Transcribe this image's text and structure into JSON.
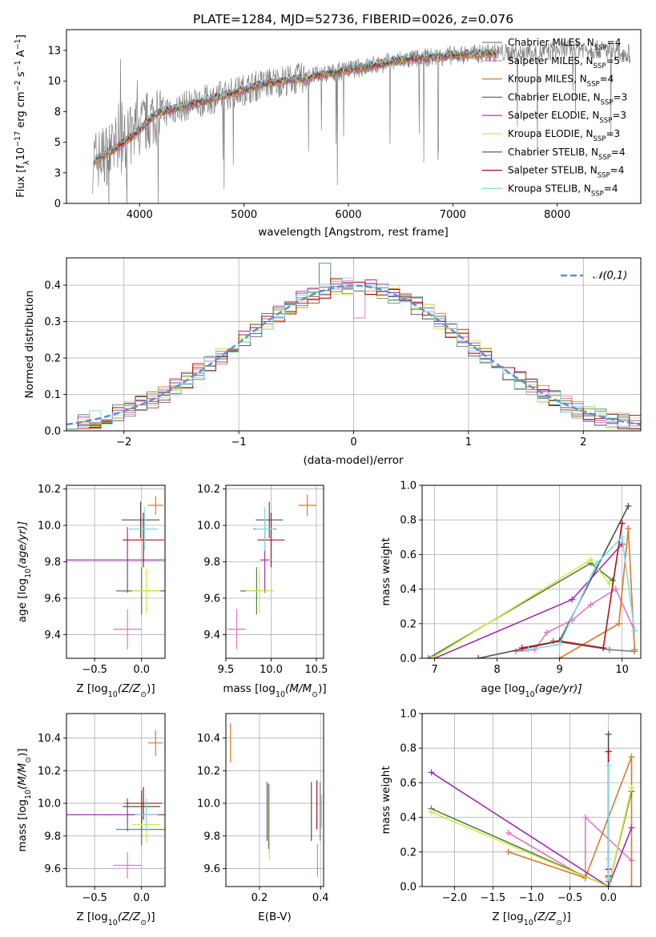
{
  "colors": {
    "Chabrier MILES": "#7f7f7f",
    "Salpeter MILES": "#e377c2",
    "Kroupa MILES": "#d97a2b",
    "Chabrier ELODIE": "#4f7f4f",
    "Salpeter ELODIE": "#9b30b0",
    "Kroupa ELODIE": "#d4e83c",
    "Chabrier STELIB": "#505050",
    "Salpeter STELIB": "#b01010",
    "Kroupa STELIB": "#80d8e8",
    "normal": "#5f8fd6",
    "grid": "#b0b0b0",
    "data": "#808080"
  },
  "chart_data": [
    {
      "id": "spectrum",
      "type": "line",
      "title": "PLATE=1284, MJD=52736, FIBERID=0026, z=0.076",
      "xlabel": "wavelength [Angstrom, rest frame]",
      "ylabel_parts": [
        "Flux [f",
        "λ",
        "10",
        "−17",
        " erg cm",
        "−2",
        " s",
        "−1",
        " A",
        "−1",
        "]"
      ],
      "xlim": [
        3300,
        8800
      ],
      "ylim": [
        0,
        14.2
      ],
      "xticks": [
        4000,
        5000,
        6000,
        7000,
        8000
      ],
      "yticks": [
        0.0,
        2.5,
        5.0,
        7.5,
        10.0,
        12.5
      ],
      "grid": false,
      "legend_position": "top-right",
      "continuum": [
        [
          3550,
          3.4
        ],
        [
          3750,
          4.4
        ],
        [
          3950,
          5.6
        ],
        [
          4150,
          7.3
        ],
        [
          4450,
          8.0
        ],
        [
          4800,
          8.8
        ],
        [
          5200,
          9.8
        ],
        [
          5600,
          10.3
        ],
        [
          6000,
          10.9
        ],
        [
          6500,
          11.7
        ],
        [
          7000,
          12.1
        ],
        [
          7400,
          12.3
        ],
        [
          7800,
          12.3
        ],
        [
          8200,
          12.7
        ],
        [
          8500,
          12.5
        ],
        [
          8700,
          12.2
        ]
      ],
      "models_end": 7420,
      "series": [
        {
          "name": "Chabrier MILES",
          "nssp": "4"
        },
        {
          "name": "Salpeter MILES",
          "nssp": "5"
        },
        {
          "name": "Kroupa MILES",
          "nssp": "4"
        },
        {
          "name": "Chabrier ELODIE",
          "nssp": "3"
        },
        {
          "name": "Salpeter ELODIE",
          "nssp": "3"
        },
        {
          "name": "Kroupa ELODIE",
          "nssp": "3"
        },
        {
          "name": "Chabrier STELIB",
          "nssp": "4"
        },
        {
          "name": "Salpeter STELIB",
          "nssp": "4"
        },
        {
          "name": "Kroupa STELIB",
          "nssp": "4"
        }
      ]
    },
    {
      "id": "residuals",
      "type": "histogram",
      "xlabel": "(data-model)/error",
      "ylabel": "Normed distribution",
      "xlim": [
        -2.5,
        2.5
      ],
      "ylim": [
        0,
        0.475
      ],
      "xticks": [
        -2,
        -1,
        0,
        1,
        2
      ],
      "yticks": [
        0.0,
        0.1,
        0.2,
        0.3,
        0.4
      ],
      "grid": true,
      "legend_position": "top-right",
      "legend": "𝒩(0,1)",
      "bin_width": 0.1,
      "bins_start": -2.5,
      "featured_values": {
        "Chabrier ELODIE": {
          "index": 22,
          "value": 0.46
        },
        "Salpeter MILES": {
          "index": 25,
          "value": 0.31
        }
      }
    },
    {
      "id": "age_vs_Z",
      "type": "errorbar",
      "xlabel_parts": [
        "Z [log",
        "10",
        "(Z/Z",
        "⊙",
        ")]"
      ],
      "ylabel_parts": [
        "age  [log",
        "10",
        "(age/yr)]"
      ],
      "xlim": [
        -0.8,
        0.25
      ],
      "ylim": [
        9.27,
        10.22
      ],
      "xticks": [
        -0.5,
        0.0
      ],
      "yticks": [
        9.4,
        9.6,
        9.8,
        10.0,
        10.2
      ],
      "grid": true,
      "points": [
        {
          "s": "Chabrier MILES",
          "x": 0.02,
          "y": 9.98,
          "xerr": 0.15,
          "yerr": 0.05
        },
        {
          "s": "Salpeter MILES",
          "x": -0.15,
          "y": 9.43,
          "xerr": 0.15,
          "yerr": 0.11
        },
        {
          "s": "Kroupa MILES",
          "x": 0.15,
          "y": 10.11,
          "xerr": 0.08,
          "yerr": 0.05
        },
        {
          "s": "Chabrier ELODIE",
          "x": 0.0,
          "y": 9.64,
          "xerr": 0.27,
          "yerr": 0.13
        },
        {
          "s": "Salpeter ELODIE",
          "x": -0.15,
          "y": 9.81,
          "xerr": 0.65,
          "yerr": 0.18
        },
        {
          "s": "Kroupa ELODIE",
          "x": 0.05,
          "y": 9.64,
          "xerr": 0.15,
          "yerr": 0.12
        },
        {
          "s": "Chabrier STELIB",
          "x": -0.01,
          "y": 10.03,
          "xerr": 0.2,
          "yerr": 0.1
        },
        {
          "s": "Salpeter STELIB",
          "x": 0.02,
          "y": 9.92,
          "xerr": 0.22,
          "yerr": 0.15
        },
        {
          "s": "Kroupa STELIB",
          "x": 0.03,
          "y": 9.98,
          "xerr": 0.15,
          "yerr": 0.12
        }
      ]
    },
    {
      "id": "age_vs_mass",
      "type": "errorbar",
      "xlabel_parts": [
        "mass [log",
        "10",
        "(M/M",
        "⊙",
        ")]"
      ],
      "ylabel_parts": [],
      "xlim": [
        9.5,
        10.58
      ],
      "ylim": [
        9.27,
        10.22
      ],
      "xticks": [
        9.5,
        10.0,
        10.5
      ],
      "yticks": [
        9.4,
        9.6,
        9.8,
        10.0,
        10.2
      ],
      "grid": true,
      "points": [
        {
          "s": "Chabrier MILES",
          "x": 9.93,
          "y": 9.98,
          "xerr": 0.13,
          "yerr": 0.05
        },
        {
          "s": "Salpeter MILES",
          "x": 9.62,
          "y": 9.43,
          "xerr": 0.1,
          "yerr": 0.11
        },
        {
          "s": "Kroupa MILES",
          "x": 10.4,
          "y": 10.11,
          "xerr": 0.1,
          "yerr": 0.06
        },
        {
          "s": "Chabrier ELODIE",
          "x": 9.84,
          "y": 9.64,
          "xerr": 0.18,
          "yerr": 0.13
        },
        {
          "s": "Salpeter ELODIE",
          "x": 9.93,
          "y": 9.81,
          "xerr": 0.05,
          "yerr": 0.18
        },
        {
          "s": "Kroupa ELODIE",
          "x": 9.87,
          "y": 9.64,
          "xerr": 0.15,
          "yerr": 0.12
        },
        {
          "s": "Chabrier STELIB",
          "x": 9.98,
          "y": 10.03,
          "xerr": 0.15,
          "yerr": 0.1
        },
        {
          "s": "Salpeter STELIB",
          "x": 10.0,
          "y": 9.92,
          "xerr": 0.15,
          "yerr": 0.15
        },
        {
          "s": "Kroupa STELIB",
          "x": 9.93,
          "y": 9.98,
          "xerr": 0.1,
          "yerr": 0.12
        }
      ]
    },
    {
      "id": "massweight_vs_age",
      "type": "line",
      "xlabel_parts": [
        "age  [log",
        "10",
        "(age/yr)]"
      ],
      "ylabel": "mass weight",
      "xlim": [
        6.8,
        10.3
      ],
      "ylim": [
        0,
        1.0
      ],
      "xticks": [
        7,
        8,
        9,
        10
      ],
      "yticks": [
        0.0,
        0.2,
        0.4,
        0.6,
        0.8,
        1.0
      ],
      "grid": true,
      "series": [
        {
          "s": "Chabrier MILES",
          "x": [
            8.9,
            9.8,
            10.2
          ],
          "y": [
            0.1,
            0.05,
            0.04
          ]
        },
        {
          "s": "Salpeter MILES",
          "x": [
            8.3,
            8.6,
            8.8,
            9.2,
            9.5,
            9.9,
            10.2
          ],
          "y": [
            0.04,
            0.05,
            0.15,
            0.22,
            0.31,
            0.4,
            0.16
          ]
        },
        {
          "s": "Kroupa MILES",
          "x": [
            9.0,
            9.95,
            10.1,
            10.2
          ],
          "y": [
            0.0,
            0.2,
            0.75,
            0.05
          ]
        },
        {
          "s": "Chabrier ELODIE",
          "x": [
            6.9,
            9.5,
            9.85
          ],
          "y": [
            0.0,
            0.55,
            0.45
          ]
        },
        {
          "s": "Salpeter ELODIE",
          "x": [
            7.0,
            9.2,
            10.0
          ],
          "y": [
            0.0,
            0.34,
            0.66
          ]
        },
        {
          "s": "Kroupa ELODIE",
          "x": [
            6.95,
            9.5,
            9.8
          ],
          "y": [
            0.0,
            0.57,
            0.43
          ]
        },
        {
          "s": "Chabrier STELIB",
          "x": [
            7.7,
            9.0,
            10.1
          ],
          "y": [
            0.0,
            0.1,
            0.88
          ]
        },
        {
          "s": "Salpeter STELIB",
          "x": [
            8.4,
            9.0,
            9.7,
            10.0
          ],
          "y": [
            0.06,
            0.1,
            0.06,
            0.78
          ]
        },
        {
          "s": "Kroupa STELIB",
          "x": [
            8.5,
            9.0,
            9.6,
            10.0,
            10.2
          ],
          "y": [
            0.05,
            0.08,
            0.55,
            0.7,
            0.16
          ]
        }
      ]
    },
    {
      "id": "mass_vs_Z",
      "type": "errorbar",
      "xlabel_parts": [
        "Z [log",
        "10",
        "(Z/Z",
        "⊙",
        ")]"
      ],
      "ylabel_parts": [
        "mass [log",
        "10",
        "(M/M",
        "⊙",
        ")]"
      ],
      "xlim": [
        -0.8,
        0.25
      ],
      "ylim": [
        9.49,
        10.55
      ],
      "xticks": [
        -0.5,
        0.0
      ],
      "yticks": [
        9.6,
        9.8,
        10.0,
        10.2,
        10.4
      ],
      "grid": true,
      "points": [
        {
          "s": "Chabrier MILES",
          "x": 0.0,
          "y": 9.93,
          "xerr": 0.15,
          "yerr": 0.1
        },
        {
          "s": "Salpeter MILES",
          "x": -0.15,
          "y": 9.62,
          "xerr": 0.15,
          "yerr": 0.08
        },
        {
          "s": "Kroupa MILES",
          "x": 0.15,
          "y": 10.37,
          "xerr": 0.08,
          "yerr": 0.08
        },
        {
          "s": "Chabrier ELODIE",
          "x": 0.0,
          "y": 9.84,
          "xerr": 0.27,
          "yerr": 0.1
        },
        {
          "s": "Salpeter ELODIE",
          "x": -0.15,
          "y": 9.93,
          "xerr": 0.65,
          "yerr": 0.1
        },
        {
          "s": "Kroupa ELODIE",
          "x": 0.05,
          "y": 9.87,
          "xerr": 0.15,
          "yerr": 0.11
        },
        {
          "s": "Chabrier STELIB",
          "x": 0.0,
          "y": 9.98,
          "xerr": 0.2,
          "yerr": 0.1
        },
        {
          "s": "Salpeter STELIB",
          "x": 0.02,
          "y": 10.0,
          "xerr": 0.2,
          "yerr": 0.1
        },
        {
          "s": "Kroupa STELIB",
          "x": 0.05,
          "y": 9.93,
          "xerr": 0.12,
          "yerr": 0.1
        }
      ]
    },
    {
      "id": "mass_vs_EBV",
      "type": "errorbar",
      "xlabel_parts": [
        "E(B-V)"
      ],
      "ylabel_parts": [],
      "xlim": [
        0.09,
        0.41
      ],
      "ylim": [
        9.49,
        10.55
      ],
      "xticks": [
        0.2,
        0.4
      ],
      "yticks": [
        9.6,
        9.8,
        10.0,
        10.2,
        10.4
      ],
      "grid": true,
      "points": [
        {
          "s": "Chabrier MILES",
          "x": 0.399,
          "y": 9.95,
          "xerr": 0,
          "yerr": 0.18
        },
        {
          "s": "Salpeter MILES",
          "x": 0.39,
          "y": 9.65,
          "xerr": 0,
          "yerr": 0.1
        },
        {
          "s": "Kroupa MILES",
          "x": 0.105,
          "y": 10.37,
          "xerr": 0,
          "yerr": 0.12
        },
        {
          "s": "Chabrier ELODIE",
          "x": 0.23,
          "y": 9.92,
          "xerr": 0,
          "yerr": 0.2
        },
        {
          "s": "Salpeter ELODIE",
          "x": 0.225,
          "y": 9.95,
          "xerr": 0,
          "yerr": 0.18
        },
        {
          "s": "Kroupa ELODIE",
          "x": 0.233,
          "y": 9.88,
          "xerr": 0,
          "yerr": 0.23
        },
        {
          "s": "Chabrier STELIB",
          "x": 0.37,
          "y": 9.95,
          "xerr": 0,
          "yerr": 0.18
        },
        {
          "s": "Salpeter STELIB",
          "x": 0.388,
          "y": 9.99,
          "xerr": 0,
          "yerr": 0.15
        },
        {
          "s": "Kroupa STELIB",
          "x": 0.403,
          "y": 9.95,
          "xerr": 0,
          "yerr": 0.1
        }
      ]
    },
    {
      "id": "massweight_vs_Z",
      "type": "line",
      "xlabel_parts": [
        "Z [log",
        "10",
        "(Z/Z",
        "⊙",
        ")]"
      ],
      "ylabel": "mass weight",
      "xlim": [
        -2.42,
        0.42
      ],
      "ylim": [
        0,
        1.0
      ],
      "xticks": [
        -2.0,
        -1.5,
        -1.0,
        -0.5,
        0.0
      ],
      "yticks": [
        0.0,
        0.2,
        0.4,
        0.6,
        0.8,
        1.0
      ],
      "grid": true,
      "series": [
        {
          "s": "Chabrier MILES",
          "x": [
            0.0,
            0.0,
            0.0
          ],
          "y": [
            0.1,
            0.05,
            0.03
          ]
        },
        {
          "s": "Salpeter MILES",
          "x": [
            -1.3,
            -0.3,
            -0.3,
            0.3
          ],
          "y": [
            0.31,
            0.05,
            0.4,
            0.15
          ]
        },
        {
          "s": "Kroupa MILES",
          "x": [
            -1.3,
            -0.3,
            0.3,
            0.3
          ],
          "y": [
            0.2,
            0.05,
            0.75,
            0.0
          ]
        },
        {
          "s": "Chabrier ELODIE",
          "x": [
            -2.3,
            0.0,
            0.3
          ],
          "y": [
            0.45,
            0.0,
            0.55
          ]
        },
        {
          "s": "Salpeter ELODIE",
          "x": [
            -2.3,
            0.0,
            0.3
          ],
          "y": [
            0.66,
            0.0,
            0.34
          ]
        },
        {
          "s": "Kroupa ELODIE",
          "x": [
            -2.3,
            0.0,
            0.3
          ],
          "y": [
            0.43,
            0.0,
            0.57
          ]
        },
        {
          "s": "Chabrier STELIB",
          "x": [
            0.0,
            0.0,
            0.0
          ],
          "y": [
            0.88,
            0.05,
            0.0
          ]
        },
        {
          "s": "Salpeter STELIB",
          "x": [
            0.0,
            0.0,
            0.0
          ],
          "y": [
            0.78,
            0.1,
            0.06
          ]
        },
        {
          "s": "Kroupa STELIB",
          "x": [
            0.0,
            0.0,
            0.0
          ],
          "y": [
            0.7,
            0.16,
            0.05
          ]
        }
      ]
    }
  ]
}
